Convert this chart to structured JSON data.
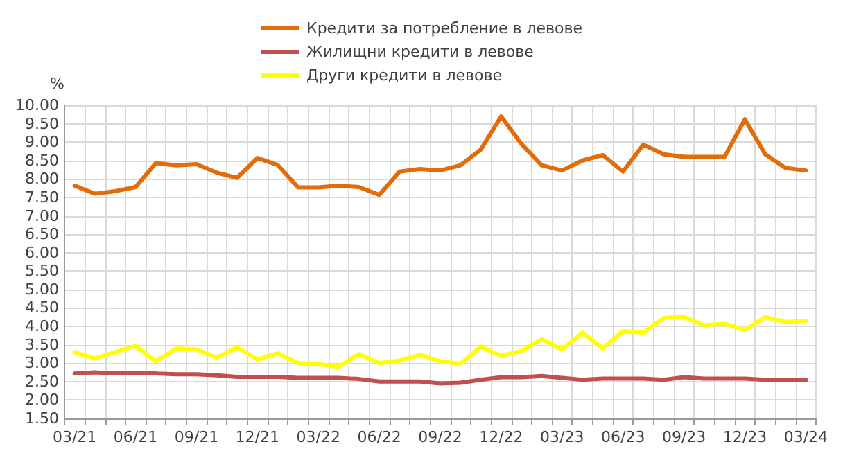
{
  "chart_data": {
    "type": "line",
    "ylabel": "%",
    "categories": [
      "03/21",
      null,
      null,
      "06/21",
      null,
      null,
      "09/21",
      null,
      null,
      "12/21",
      null,
      null,
      "03/22",
      null,
      null,
      "06/22",
      null,
      null,
      "09/22",
      null,
      null,
      "12/22",
      null,
      null,
      "03/23",
      null,
      null,
      "06/23",
      null,
      null,
      "09/23",
      null,
      null,
      "12/23",
      null,
      null,
      "03/24"
    ],
    "series": [
      {
        "name": "Кредити за потребление в левове",
        "color": "#e36c0a",
        "values": [
          7.82,
          7.6,
          7.67,
          7.78,
          8.43,
          8.37,
          8.4,
          8.17,
          8.03,
          8.57,
          8.38,
          7.77,
          7.77,
          7.82,
          7.78,
          7.57,
          8.2,
          8.27,
          8.23,
          8.37,
          8.8,
          9.7,
          8.95,
          8.37,
          8.23,
          8.5,
          8.65,
          8.2,
          8.93,
          8.67,
          8.6,
          8.6,
          8.6,
          9.62,
          8.67,
          8.3,
          8.23
        ]
      },
      {
        "name": "Жилищни кредити в левове",
        "color": "#c0504d",
        "values": [
          2.72,
          2.75,
          2.72,
          2.72,
          2.72,
          2.7,
          2.7,
          2.67,
          2.63,
          2.63,
          2.63,
          2.6,
          2.6,
          2.6,
          2.57,
          2.5,
          2.5,
          2.5,
          2.45,
          2.47,
          2.55,
          2.62,
          2.62,
          2.65,
          2.6,
          2.55,
          2.58,
          2.58,
          2.58,
          2.55,
          2.62,
          2.58,
          2.58,
          2.58,
          2.55,
          2.55,
          2.55
        ]
      },
      {
        "name": "Други кредити в левове",
        "color": "#ffff00",
        "values": [
          3.3,
          3.13,
          3.3,
          3.47,
          3.05,
          3.4,
          3.37,
          3.15,
          3.43,
          3.1,
          3.27,
          3.0,
          2.97,
          2.9,
          3.25,
          3.0,
          3.07,
          3.23,
          3.05,
          2.98,
          3.45,
          3.2,
          3.33,
          3.65,
          3.37,
          3.83,
          3.4,
          3.87,
          3.83,
          4.23,
          4.25,
          4.03,
          4.07,
          3.9,
          4.25,
          4.12,
          4.15
        ]
      }
    ],
    "ylim": [
      1.5,
      10
    ],
    "yticks": [
      {
        "value": 1.5,
        "label": "1.50"
      },
      {
        "value": 2,
        "label": "2.00"
      },
      {
        "value": 2.5,
        "label": "2.50"
      },
      {
        "value": 3,
        "label": "3.00"
      },
      {
        "value": 3.5,
        "label": "3.50"
      },
      {
        "value": 4,
        "label": "4.00"
      },
      {
        "value": 4.5,
        "label": "4.50"
      },
      {
        "value": 5,
        "label": "5.00"
      },
      {
        "value": 5.5,
        "label": "5.50"
      },
      {
        "value": 6,
        "label": "6.00"
      },
      {
        "value": 6.5,
        "label": "6.50"
      },
      {
        "value": 7,
        "label": "7.00"
      },
      {
        "value": 7.5,
        "label": "7.50"
      },
      {
        "value": 8,
        "label": "8.00"
      },
      {
        "value": 8.5,
        "label": "8.50"
      },
      {
        "value": 9,
        "label": "9.00"
      },
      {
        "value": 9.5,
        "label": "9.50"
      },
      {
        "value": 10,
        "label": "10.00"
      }
    ],
    "grid": true,
    "legend": "top",
    "marker": "none",
    "line_style": "solid"
  }
}
